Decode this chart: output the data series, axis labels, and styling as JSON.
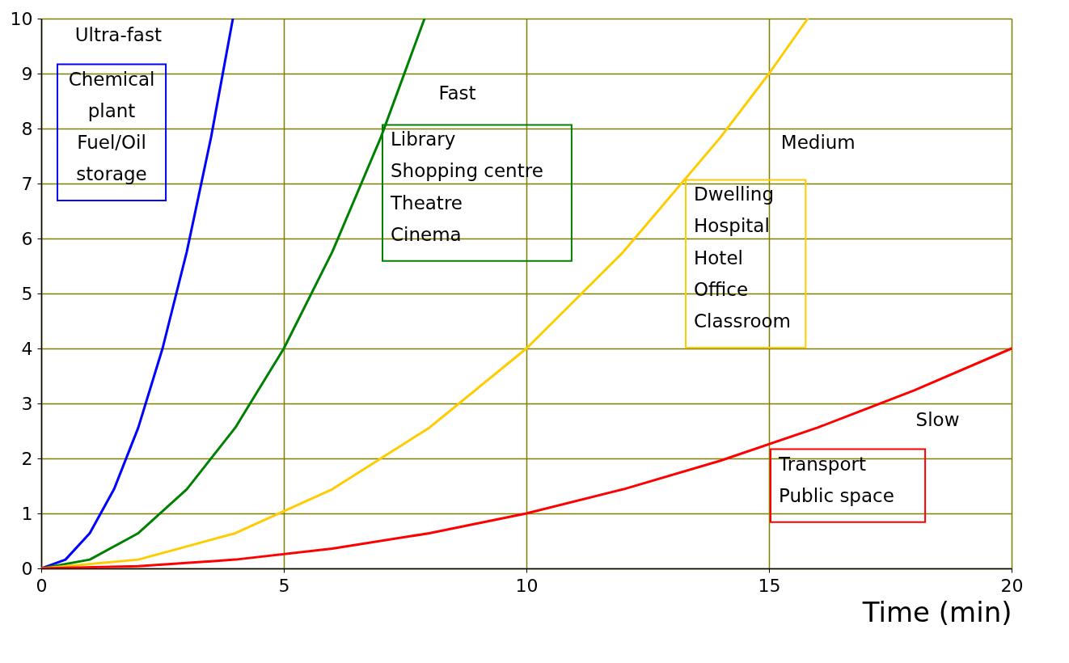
{
  "chart_data": {
    "type": "line",
    "xlabel": "Time (min)",
    "xlim": [
      0,
      20
    ],
    "ylim": [
      0,
      10
    ],
    "xticks": [
      0,
      5,
      10,
      15,
      20
    ],
    "yticks": [
      0,
      1,
      2,
      3,
      4,
      5,
      6,
      7,
      8,
      9,
      10
    ],
    "grid": true,
    "legend": false,
    "marker": "none",
    "line_style": "solid",
    "series": [
      {
        "color": "#0000ff",
        "x": [
          0,
          0.5,
          1,
          1.5,
          2,
          2.5,
          3,
          3.5,
          3.95
        ],
        "values": [
          0,
          0.16,
          0.64,
          1.44,
          2.56,
          4,
          5.76,
          7.84,
          10
        ]
      },
      {
        "color": "#008000",
        "x": [
          0,
          1,
          2,
          3,
          4,
          5,
          6,
          7,
          7.9
        ],
        "values": [
          0,
          0.16,
          0.64,
          1.44,
          2.56,
          4,
          5.76,
          7.84,
          10
        ]
      },
      {
        "color": "#ffcc00",
        "x": [
          0,
          2,
          4,
          6,
          8,
          10,
          12,
          14,
          15,
          15.8
        ],
        "values": [
          0,
          0.16,
          0.64,
          1.44,
          2.56,
          4,
          5.76,
          7.84,
          9,
          10
        ]
      },
      {
        "color": "#ff0000",
        "x": [
          0,
          2,
          4,
          6,
          8,
          10,
          12,
          14,
          16,
          18,
          20
        ],
        "values": [
          0,
          0.04,
          0.16,
          0.36,
          0.64,
          1,
          1.44,
          1.96,
          2.56,
          3.24,
          4
        ]
      }
    ],
    "annotations": [
      "Ultra-fast",
      "Chemical\nplant\nFuel/Oil\nstorage",
      "Fast",
      "Library\nShopping centre\nTheatre\nCinema",
      "Medium",
      "Dwelling\nHospital\nHotel\nOffice\nClassroom",
      "Slow",
      "Transport\nPublic space"
    ]
  }
}
